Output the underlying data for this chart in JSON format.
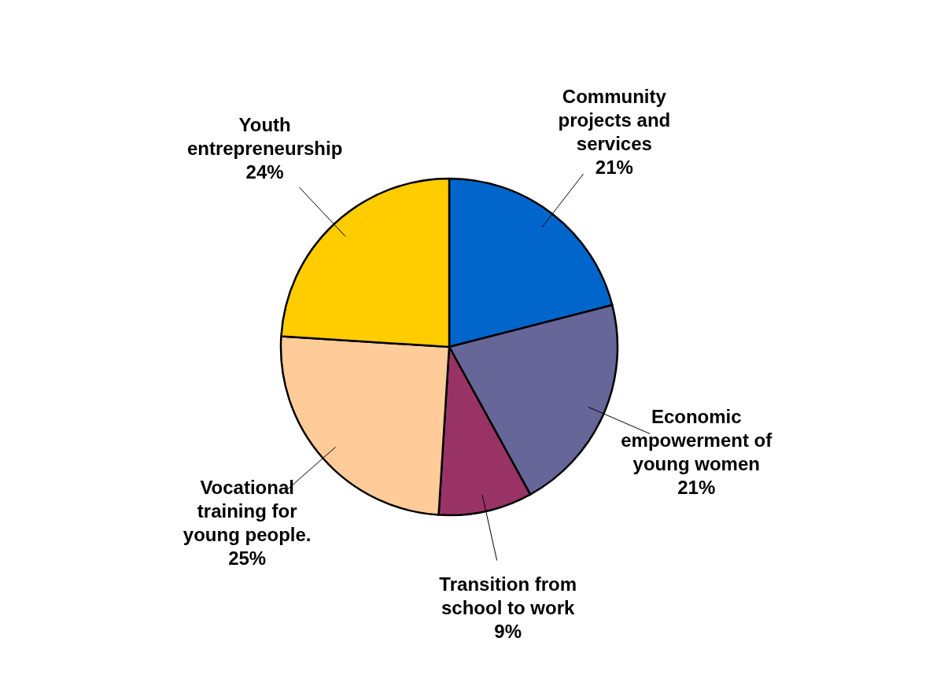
{
  "chart_data": {
    "type": "pie",
    "categories": [
      "Community projects and services",
      "Economic empowerment of young women",
      "Transition from school to work",
      "Vocational training for young people.",
      "Youth entrepreneurship"
    ],
    "values": [
      21,
      21,
      9,
      25,
      24
    ],
    "colors": [
      "#0066cc",
      "#666699",
      "#993366",
      "#ffcc99",
      "#ffcc00"
    ],
    "value_labels": [
      "21%",
      "21%",
      "9%",
      "25%",
      "24%"
    ]
  }
}
